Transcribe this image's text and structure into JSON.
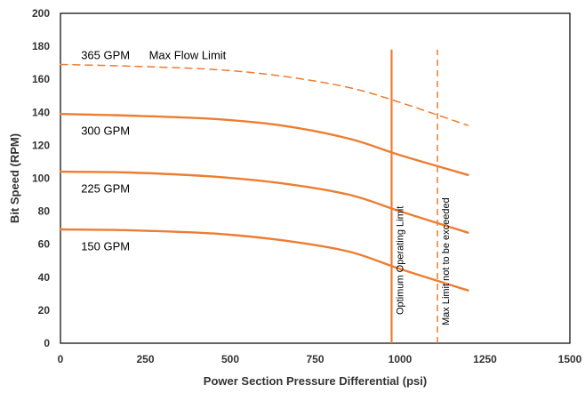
{
  "chart_data": {
    "type": "line",
    "title": "",
    "xlabel": "Power Section Pressure Differential (psi)",
    "ylabel": "Bit Speed (RPM)",
    "xlim": [
      0,
      1500
    ],
    "ylim": [
      0,
      200
    ],
    "xticks": [
      0,
      250,
      500,
      750,
      1000,
      1250,
      1500
    ],
    "yticks": [
      0,
      20,
      40,
      60,
      80,
      100,
      120,
      140,
      160,
      180,
      200
    ],
    "grid": false,
    "legend": "none",
    "color": "#ED7D31",
    "series": [
      {
        "name": "365 GPM",
        "dashed": true,
        "x": [
          0,
          200,
          450,
          650,
          850,
          1000,
          1200
        ],
        "y": [
          169,
          168,
          166,
          162,
          155,
          146,
          132
        ]
      },
      {
        "name": "300 GPM",
        "dashed": false,
        "x": [
          0,
          200,
          450,
          650,
          850,
          1000,
          1200
        ],
        "y": [
          139,
          138,
          136,
          132,
          124,
          114,
          102
        ]
      },
      {
        "name": "225 GPM",
        "dashed": false,
        "x": [
          0,
          200,
          450,
          650,
          850,
          1000,
          1200
        ],
        "y": [
          104,
          103.5,
          101,
          97,
          90,
          80,
          67
        ]
      },
      {
        "name": "150 GPM",
        "dashed": false,
        "x": [
          0,
          200,
          450,
          650,
          850,
          1000,
          1200
        ],
        "y": [
          69,
          68.5,
          66.5,
          62.5,
          55.5,
          45,
          32
        ]
      }
    ],
    "vlines": [
      {
        "label": "Optimum Operating Limit",
        "x": 975,
        "ymin": 0,
        "ymax": 178,
        "dashed": false
      },
      {
        "label": "Max Limit not to be exceeded",
        "x": 1110,
        "ymin": 0,
        "ymax": 178,
        "dashed": true
      }
    ],
    "annotations": [
      {
        "text": "Max Flow Limit",
        "x": 300,
        "y": 175
      },
      {
        "text": "365 GPM",
        "x": 100,
        "y": 175
      },
      {
        "text": "300 GPM",
        "x": 100,
        "y": 129
      },
      {
        "text": "225 GPM",
        "x": 100,
        "y": 94
      },
      {
        "text": "150 GPM",
        "x": 100,
        "y": 59
      }
    ]
  }
}
